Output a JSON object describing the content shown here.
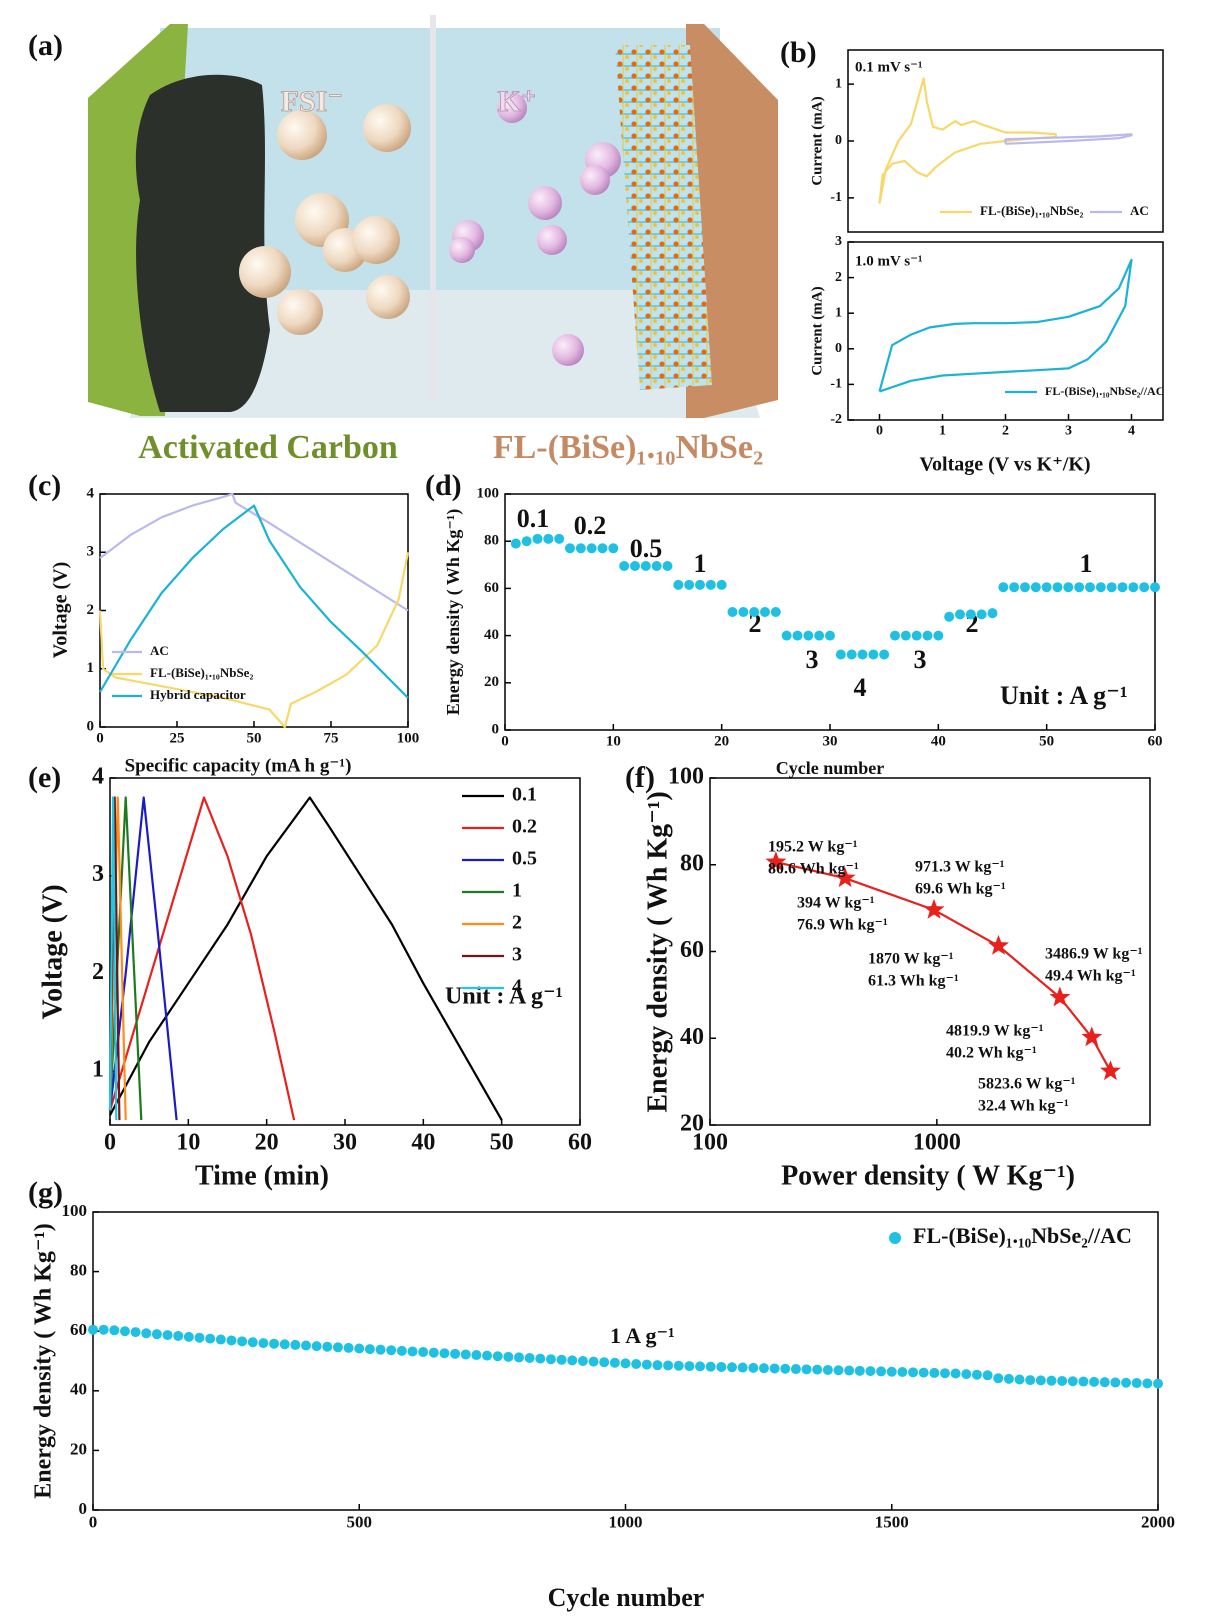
{
  "illustration": {
    "panel_label": "(a)",
    "anion": "FSI⁻",
    "cation": "K⁺",
    "left_label": "Activated Carbon",
    "right_label": "FL-(BiSe)₁.₁₀NbSe₂"
  },
  "chart_data": [
    {
      "type": "line",
      "panel_label": "(b)",
      "ylabel": "Current (mA)",
      "annotations": [
        "0.1 mV s⁻¹"
      ],
      "xlim": [
        -0.5,
        4.5
      ],
      "ylim": [
        -1.6,
        1.6
      ],
      "yticks": [
        -1,
        0,
        1
      ],
      "legend": "lower right",
      "series": [
        {
          "name": "FL-(BiSe)₁.₁₀NbSe₂",
          "color": "#f7d86a",
          "x": [
            0,
            0.05,
            0.2,
            0.4,
            0.6,
            0.75,
            0.9,
            1.2,
            1.6,
            2.0,
            2.5,
            2.8,
            2.8,
            2.4,
            2.0,
            1.6,
            1.5,
            1.3,
            1.2,
            1.0,
            0.85,
            0.75,
            0.7,
            0.65,
            0.5,
            0.3,
            0.1,
            0
          ],
          "values": [
            -1.1,
            -0.6,
            -0.4,
            -0.35,
            -0.55,
            -0.62,
            -0.45,
            -0.2,
            -0.05,
            0.0,
            0.05,
            0.07,
            0.12,
            0.15,
            0.15,
            0.3,
            0.35,
            0.28,
            0.35,
            0.2,
            0.25,
            0.7,
            1.1,
            0.9,
            0.3,
            0.0,
            -0.5,
            -1.1
          ]
        },
        {
          "name": "AC",
          "color": "#b9b9ee",
          "x": [
            2,
            3,
            3.8,
            4,
            4,
            3.5,
            2.5,
            2,
            2
          ],
          "values": [
            -0.05,
            0.0,
            0.05,
            0.1,
            0.12,
            0.08,
            0.05,
            0.03,
            -0.05
          ]
        }
      ]
    },
    {
      "type": "line",
      "xlabel": "Voltage (V vs K⁺/K)",
      "ylabel": "Current (mA)",
      "annotations": [
        "1.0 mV s⁻¹"
      ],
      "xlim": [
        -0.5,
        4.5
      ],
      "ylim": [
        -2,
        3
      ],
      "xticks": [
        0,
        1,
        2,
        3,
        4
      ],
      "yticks": [
        -2,
        -1,
        0,
        1,
        2,
        3
      ],
      "legend": "lower right",
      "series": [
        {
          "name": "FL-(BiSe)₁.₁₀NbSe₂//AC",
          "color": "#1ab3d6",
          "x": [
            0,
            0.5,
            1,
            1.5,
            2,
            2.5,
            3,
            3.3,
            3.6,
            3.9,
            4,
            3.8,
            3.5,
            3.0,
            2.5,
            2,
            1.5,
            1.2,
            0.8,
            0.5,
            0.2,
            0
          ],
          "values": [
            -1.2,
            -0.9,
            -0.75,
            -0.7,
            -0.65,
            -0.6,
            -0.55,
            -0.3,
            0.2,
            1.2,
            2.5,
            1.7,
            1.2,
            0.9,
            0.75,
            0.72,
            0.72,
            0.7,
            0.6,
            0.4,
            0.1,
            -1.2
          ]
        }
      ]
    },
    {
      "type": "line",
      "panel_label": "(c)",
      "xlabel": "Specific capacity (mA h g⁻¹)",
      "ylabel": "Voltage (V)",
      "xlim": [
        0,
        100
      ],
      "ylim": [
        0,
        4
      ],
      "xticks": [
        0,
        25,
        50,
        75,
        100
      ],
      "yticks": [
        0,
        1,
        2,
        3,
        4
      ],
      "legend": "center left",
      "series": [
        {
          "name": "AC",
          "color": "#b9b9ee",
          "x": [
            0,
            10,
            20,
            30,
            40,
            43,
            44,
            55,
            70,
            85,
            100
          ],
          "values": [
            2.9,
            3.3,
            3.6,
            3.8,
            3.95,
            4.0,
            3.85,
            3.5,
            3.0,
            2.5,
            2.0
          ]
        },
        {
          "name": "FL-(BiSe)₁.₁₀NbSe₂",
          "color": "#f7d86a",
          "x": [
            0,
            1,
            5,
            20,
            40,
            55,
            60,
            62,
            70,
            80,
            90,
            97,
            100
          ],
          "values": [
            2.0,
            1.0,
            0.85,
            0.7,
            0.5,
            0.3,
            0.0,
            0.4,
            0.6,
            0.9,
            1.4,
            2.2,
            3.0
          ]
        },
        {
          "name": "Hybrid capacitor",
          "color": "#1ab3d6",
          "x": [
            0,
            10,
            20,
            30,
            40,
            50,
            55,
            65,
            75,
            85,
            100
          ],
          "values": [
            0.6,
            1.5,
            2.3,
            2.9,
            3.4,
            3.8,
            3.2,
            2.4,
            1.8,
            1.3,
            0.5
          ]
        }
      ]
    },
    {
      "type": "scatter",
      "panel_label": "(d)",
      "xlabel": "Cycle number",
      "ylabel": "Energy density ( Wh Kg⁻¹)",
      "annotations": [
        "Unit : A g⁻¹"
      ],
      "rate_labels": [
        "0.1",
        "0.2",
        "0.5",
        "1",
        "2",
        "3",
        "4",
        "3",
        "2",
        "1"
      ],
      "color": "#1fc0e2",
      "xlim": [
        0,
        60
      ],
      "ylim": [
        0,
        100
      ],
      "xticks": [
        0,
        10,
        20,
        30,
        40,
        50,
        60
      ],
      "yticks": [
        0,
        20,
        40,
        60,
        80,
        100
      ],
      "x": [
        1,
        2,
        3,
        4,
        5,
        6,
        7,
        8,
        9,
        10,
        11,
        12,
        13,
        14,
        15,
        16,
        17,
        18,
        19,
        20,
        21,
        22,
        23,
        24,
        25,
        26,
        27,
        28,
        29,
        30,
        31,
        32,
        33,
        34,
        35,
        36,
        37,
        38,
        39,
        40,
        41,
        42,
        43,
        44,
        45,
        46,
        47,
        48,
        49,
        50,
        51,
        52,
        53,
        54,
        55,
        56,
        57,
        58,
        59,
        60
      ],
      "values": [
        79,
        80,
        81,
        81,
        81,
        77,
        77,
        77,
        77,
        77,
        69.5,
        69.5,
        69.5,
        69.5,
        69.5,
        61.5,
        61.5,
        61.5,
        61.5,
        61.5,
        50,
        50,
        50,
        50,
        50,
        40,
        40,
        40,
        40,
        40,
        32,
        32,
        32,
        32,
        32,
        40,
        40,
        40,
        40,
        40,
        48,
        49,
        49,
        49,
        49.5,
        60.5,
        60.5,
        60.5,
        60.5,
        60.5,
        60.5,
        60.5,
        60.5,
        60.5,
        60.5,
        60.5,
        60.5,
        60.5,
        60.5,
        60.5
      ]
    },
    {
      "type": "line",
      "panel_label": "(e)",
      "xlabel": "Time (min)",
      "ylabel": "Voltage (V)",
      "annotations": [
        "Unit : A g⁻¹"
      ],
      "xlim": [
        0,
        60
      ],
      "ylim": [
        0.45,
        4
      ],
      "xticks": [
        0,
        10,
        20,
        30,
        40,
        50,
        60
      ],
      "yticks": [
        1,
        2,
        3,
        4
      ],
      "legend": "upper right",
      "series": [
        {
          "name": "0.1",
          "color": "#000000",
          "x": [
            0,
            5,
            10,
            15,
            20,
            25.5,
            28,
            32,
            36,
            40,
            45,
            50
          ],
          "values": [
            0.55,
            1.3,
            1.9,
            2.5,
            3.2,
            3.8,
            3.5,
            3.0,
            2.5,
            1.9,
            1.2,
            0.5
          ]
        },
        {
          "name": "0.2",
          "color": "#e8211d",
          "x": [
            0,
            3,
            6,
            9,
            12,
            15,
            18,
            21,
            23.5
          ],
          "values": [
            0.6,
            1.4,
            2.2,
            3.0,
            3.8,
            3.2,
            2.4,
            1.4,
            0.5
          ]
        },
        {
          "name": "0.5",
          "color": "#1b1bc8",
          "x": [
            0,
            2,
            4.3,
            6,
            8.5
          ],
          "values": [
            0.6,
            2.0,
            3.8,
            2.5,
            0.5
          ]
        },
        {
          "name": "1",
          "color": "#1e7a1e",
          "x": [
            0,
            2,
            4
          ],
          "values": [
            0.6,
            3.8,
            0.5
          ]
        },
        {
          "name": "2",
          "color": "#ff8c1a",
          "x": [
            0,
            1,
            2
          ],
          "values": [
            0.6,
            3.8,
            0.5
          ]
        },
        {
          "name": "3",
          "color": "#7a1010",
          "x": [
            0,
            0.6,
            1.2
          ],
          "values": [
            0.6,
            3.8,
            0.5
          ]
        },
        {
          "name": "4",
          "color": "#1ec8e6",
          "x": [
            0,
            0.4,
            0.8
          ],
          "values": [
            0.6,
            3.8,
            0.5
          ]
        }
      ]
    },
    {
      "type": "line",
      "marker": "star",
      "xscale": "log",
      "panel_label": "(f)",
      "xlabel": "Power density ( W Kg⁻¹)",
      "ylabel": "Energy density ( Wh Kg⁻¹)",
      "color": "#e8211d",
      "xlim": [
        100,
        8700
      ],
      "ylim": [
        20,
        100
      ],
      "xticks": [
        100,
        1000
      ],
      "yticks": [
        20,
        40,
        60,
        80,
        100
      ],
      "x": [
        195.2,
        394,
        971.3,
        1870,
        3486.9,
        4819.9,
        5823.6
      ],
      "values": [
        80.6,
        76.9,
        69.6,
        61.3,
        49.4,
        40.2,
        32.4
      ],
      "x_labels": [
        "195.2 W kg⁻¹",
        "394 W kg⁻¹",
        "971.3 W kg⁻¹",
        "1870 W kg⁻¹",
        "3486.9 W kg⁻¹",
        "4819.9 W kg⁻¹",
        "5823.6 W kg⁻¹"
      ],
      "value_labels": [
        "80.6 Wh kg⁻¹",
        "76.9 Wh kg⁻¹",
        "69.6 Wh kg⁻¹",
        "61.3 Wh kg⁻¹",
        "49.4 Wh kg⁻¹",
        "40.2 Wh kg⁻¹",
        "32.4 Wh kg⁻¹"
      ]
    },
    {
      "type": "scatter",
      "panel_label": "(g)",
      "xlabel": "Cycle number",
      "ylabel": "Energy density ( Wh Kg⁻¹)",
      "annotations": [
        "1 A g⁻¹"
      ],
      "xlim": [
        0,
        2000
      ],
      "ylim": [
        0,
        100
      ],
      "xticks": [
        0,
        500,
        1000,
        1500,
        2000
      ],
      "yticks": [
        0,
        20,
        40,
        60,
        80,
        100
      ],
      "legend": "upper right",
      "x": [
        0,
        20,
        40,
        60,
        80,
        100,
        120,
        140,
        160,
        180,
        200,
        220,
        240,
        260,
        280,
        300,
        320,
        340,
        360,
        380,
        400,
        420,
        440,
        460,
        480,
        500,
        520,
        540,
        560,
        580,
        600,
        620,
        640,
        660,
        680,
        700,
        720,
        740,
        760,
        780,
        800,
        820,
        840,
        860,
        880,
        900,
        920,
        940,
        960,
        980,
        1000,
        1020,
        1040,
        1060,
        1080,
        1100,
        1120,
        1140,
        1160,
        1180,
        1200,
        1220,
        1240,
        1260,
        1280,
        1300,
        1320,
        1340,
        1360,
        1380,
        1400,
        1420,
        1440,
        1460,
        1480,
        1500,
        1520,
        1540,
        1560,
        1580,
        1600,
        1620,
        1640,
        1660,
        1680,
        1700,
        1720,
        1740,
        1760,
        1780,
        1800,
        1820,
        1840,
        1860,
        1880,
        1900,
        1920,
        1940,
        1960,
        1980,
        2000
      ],
      "series": [
        {
          "name": "FL-(BiSe)₁.₁₀NbSe₂//AC",
          "color": "#1fc0e2",
          "values": [
            60.5,
            60.5,
            60.3,
            60,
            59.7,
            59.3,
            59,
            58.7,
            58.4,
            58.1,
            57.8,
            57.5,
            57.2,
            56.9,
            56.6,
            56.3,
            56,
            55.8,
            55.6,
            55.4,
            55.2,
            55,
            54.8,
            54.6,
            54.4,
            54.2,
            54,
            53.8,
            53.6,
            53.4,
            53.2,
            53,
            52.8,
            52.6,
            52.4,
            52.2,
            52,
            51.8,
            51.6,
            51.4,
            51.2,
            51,
            50.8,
            50.6,
            50.4,
            50.2,
            50,
            49.8,
            49.6,
            49.4,
            49.2,
            49,
            48.8,
            48.6,
            48.5,
            48.4,
            48.3,
            48.2,
            48.1,
            48,
            47.9,
            47.8,
            47.7,
            47.6,
            47.5,
            47.4,
            47.3,
            47.2,
            47.1,
            47,
            46.9,
            46.8,
            46.7,
            46.6,
            46.5,
            46.4,
            46.3,
            46.2,
            46.1,
            46,
            45.9,
            45.8,
            45.6,
            45.4,
            45.2,
            44.2,
            44,
            43.8,
            43.6,
            43.5,
            43.4,
            43.3,
            43.2,
            43.1,
            43,
            42.9,
            42.8,
            42.7,
            42.6,
            42.5,
            42.4
          ]
        }
      ]
    }
  ]
}
